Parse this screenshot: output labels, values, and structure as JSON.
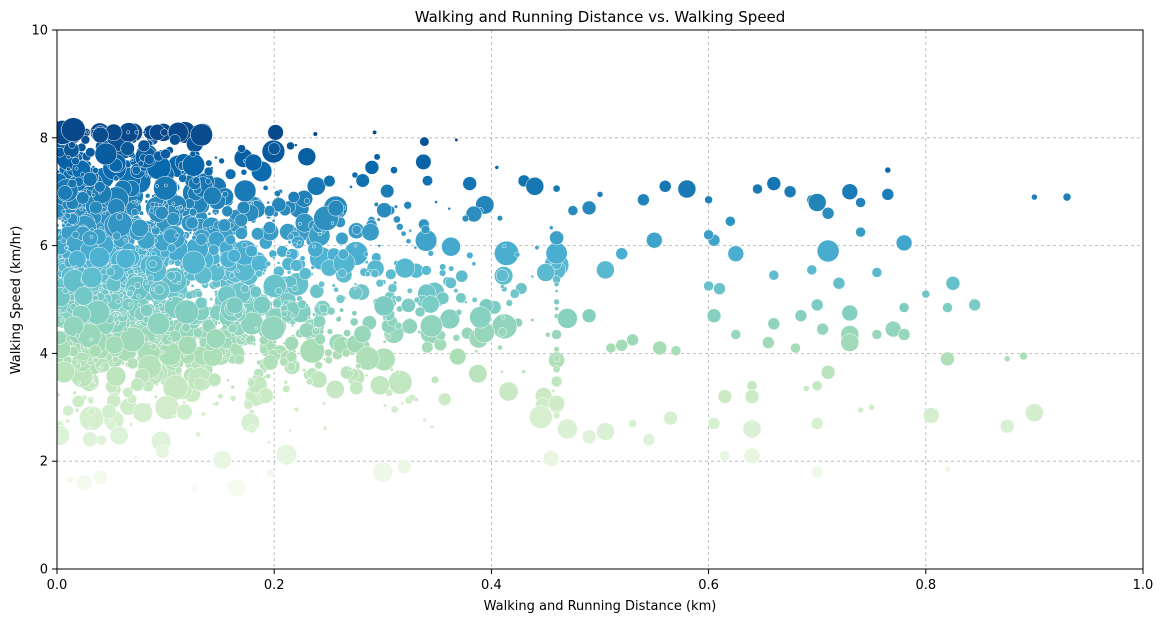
{
  "chart_data": {
    "type": "scatter",
    "title": "Walking and Running Distance vs. Walking Speed",
    "xlabel": "Walking and Running Distance (km)",
    "ylabel": "Walking Speed (km/hr)",
    "xlim": [
      0,
      1.0
    ],
    "ylim": [
      0,
      10
    ],
    "xticks": [
      "0.0",
      "0.2",
      "0.4",
      "0.6",
      "0.8",
      "1.0"
    ],
    "yticks": [
      "0",
      "2",
      "4",
      "6",
      "8",
      "10"
    ],
    "grid": true,
    "colormap": "GnBu (color by walking speed)",
    "color_stops": [
      "#f7fcf0",
      "#e0f3db",
      "#ccebc5",
      "#a8ddb5",
      "#7bccc4",
      "#4eb3d3",
      "#2b8cbe",
      "#0868ac",
      "#084081"
    ],
    "points": [
      {
        "x": 0.005,
        "y": 8.1,
        "s": 12
      },
      {
        "x": 0.015,
        "y": 8.15,
        "s": 12
      },
      {
        "x": 0.04,
        "y": 8.05,
        "s": 8
      },
      {
        "x": 0.045,
        "y": 7.7,
        "s": 11
      },
      {
        "x": 0.065,
        "y": 7.8,
        "s": 7
      },
      {
        "x": 0.08,
        "y": 7.85,
        "s": 6
      },
      {
        "x": 0.1,
        "y": 7.7,
        "s": 5
      },
      {
        "x": 0.085,
        "y": 7.6,
        "s": 5
      },
      {
        "x": 0.125,
        "y": 7.7,
        "s": 3
      },
      {
        "x": 0.17,
        "y": 7.8,
        "s": 4
      },
      {
        "x": 0.2,
        "y": 7.8,
        "s": 6
      },
      {
        "x": 0.215,
        "y": 7.85,
        "s": 4
      },
      {
        "x": 0.23,
        "y": 7.65,
        "s": 9
      },
      {
        "x": 0.29,
        "y": 7.45,
        "s": 7
      },
      {
        "x": 0.38,
        "y": 7.15,
        "s": 7
      },
      {
        "x": 0.405,
        "y": 7.45,
        "s": 2
      },
      {
        "x": 0.43,
        "y": 7.2,
        "s": 6
      },
      {
        "x": 0.44,
        "y": 7.1,
        "s": 9
      },
      {
        "x": 0.475,
        "y": 6.65,
        "s": 5
      },
      {
        "x": 0.49,
        "y": 6.7,
        "s": 7
      },
      {
        "x": 0.5,
        "y": 6.95,
        "s": 3
      },
      {
        "x": 0.54,
        "y": 6.85,
        "s": 6
      },
      {
        "x": 0.56,
        "y": 7.1,
        "s": 6
      },
      {
        "x": 0.58,
        "y": 7.05,
        "s": 9
      },
      {
        "x": 0.6,
        "y": 6.85,
        "s": 4
      },
      {
        "x": 0.645,
        "y": 7.05,
        "s": 5
      },
      {
        "x": 0.66,
        "y": 7.15,
        "s": 7
      },
      {
        "x": 0.675,
        "y": 7.0,
        "s": 6
      },
      {
        "x": 0.695,
        "y": 6.85,
        "s": 5
      },
      {
        "x": 0.7,
        "y": 6.8,
        "s": 9
      },
      {
        "x": 0.71,
        "y": 6.6,
        "s": 6
      },
      {
        "x": 0.73,
        "y": 7.0,
        "s": 8
      },
      {
        "x": 0.74,
        "y": 6.8,
        "s": 5
      },
      {
        "x": 0.765,
        "y": 6.95,
        "s": 6
      },
      {
        "x": 0.765,
        "y": 7.4,
        "s": 3
      },
      {
        "x": 0.9,
        "y": 6.9,
        "s": 3
      },
      {
        "x": 0.93,
        "y": 6.9,
        "s": 4
      },
      {
        "x": 0.71,
        "y": 5.9,
        "s": 11
      },
      {
        "x": 0.78,
        "y": 6.05,
        "s": 8
      },
      {
        "x": 0.74,
        "y": 6.25,
        "s": 5
      },
      {
        "x": 0.625,
        "y": 5.85,
        "s": 8
      },
      {
        "x": 0.605,
        "y": 6.1,
        "s": 6
      },
      {
        "x": 0.6,
        "y": 6.2,
        "s": 5
      },
      {
        "x": 0.62,
        "y": 6.45,
        "s": 5
      },
      {
        "x": 0.55,
        "y": 6.1,
        "s": 8
      },
      {
        "x": 0.52,
        "y": 5.85,
        "s": 6
      },
      {
        "x": 0.505,
        "y": 5.55,
        "s": 9
      },
      {
        "x": 0.45,
        "y": 5.5,
        "s": 9
      },
      {
        "x": 0.695,
        "y": 5.55,
        "s": 5
      },
      {
        "x": 0.72,
        "y": 5.3,
        "s": 6
      },
      {
        "x": 0.755,
        "y": 5.5,
        "s": 5
      },
      {
        "x": 0.66,
        "y": 5.45,
        "s": 5
      },
      {
        "x": 0.61,
        "y": 5.2,
        "s": 6
      },
      {
        "x": 0.6,
        "y": 5.25,
        "s": 5
      },
      {
        "x": 0.825,
        "y": 5.3,
        "s": 7
      },
      {
        "x": 0.845,
        "y": 4.9,
        "s": 6
      },
      {
        "x": 0.82,
        "y": 4.85,
        "s": 5
      },
      {
        "x": 0.78,
        "y": 4.85,
        "s": 5
      },
      {
        "x": 0.8,
        "y": 5.1,
        "s": 4
      },
      {
        "x": 0.73,
        "y": 4.75,
        "s": 8
      },
      {
        "x": 0.7,
        "y": 4.9,
        "s": 6
      },
      {
        "x": 0.685,
        "y": 4.7,
        "s": 6
      },
      {
        "x": 0.77,
        "y": 4.45,
        "s": 8
      },
      {
        "x": 0.73,
        "y": 4.35,
        "s": 9
      },
      {
        "x": 0.705,
        "y": 4.45,
        "s": 6
      },
      {
        "x": 0.68,
        "y": 4.1,
        "s": 5
      },
      {
        "x": 0.73,
        "y": 4.2,
        "s": 9
      },
      {
        "x": 0.755,
        "y": 4.35,
        "s": 5
      },
      {
        "x": 0.78,
        "y": 4.35,
        "s": 6
      },
      {
        "x": 0.605,
        "y": 4.7,
        "s": 7
      },
      {
        "x": 0.625,
        "y": 4.35,
        "s": 5
      },
      {
        "x": 0.66,
        "y": 4.55,
        "s": 6
      },
      {
        "x": 0.655,
        "y": 4.2,
        "s": 6
      },
      {
        "x": 0.57,
        "y": 4.05,
        "s": 5
      },
      {
        "x": 0.555,
        "y": 4.1,
        "s": 7
      },
      {
        "x": 0.49,
        "y": 4.7,
        "s": 7
      },
      {
        "x": 0.47,
        "y": 4.65,
        "s": 10
      },
      {
        "x": 0.46,
        "y": 4.35,
        "s": 5
      },
      {
        "x": 0.51,
        "y": 4.1,
        "s": 5
      },
      {
        "x": 0.52,
        "y": 4.15,
        "s": 6
      },
      {
        "x": 0.53,
        "y": 4.25,
        "s": 6
      },
      {
        "x": 0.82,
        "y": 3.9,
        "s": 7
      },
      {
        "x": 0.875,
        "y": 3.9,
        "s": 3
      },
      {
        "x": 0.89,
        "y": 3.95,
        "s": 4
      },
      {
        "x": 0.71,
        "y": 3.65,
        "s": 7
      },
      {
        "x": 0.7,
        "y": 3.4,
        "s": 5
      },
      {
        "x": 0.64,
        "y": 3.4,
        "s": 5
      },
      {
        "x": 0.615,
        "y": 3.2,
        "s": 7
      },
      {
        "x": 0.64,
        "y": 3.2,
        "s": 7
      },
      {
        "x": 0.69,
        "y": 3.35,
        "s": 3
      },
      {
        "x": 0.75,
        "y": 3.0,
        "s": 3
      },
      {
        "x": 0.74,
        "y": 2.95,
        "s": 3
      },
      {
        "x": 0.805,
        "y": 2.85,
        "s": 8
      },
      {
        "x": 0.9,
        "y": 2.9,
        "s": 9
      },
      {
        "x": 0.875,
        "y": 2.65,
        "s": 7
      },
      {
        "x": 0.7,
        "y": 2.7,
        "s": 6
      },
      {
        "x": 0.64,
        "y": 2.6,
        "s": 9
      },
      {
        "x": 0.605,
        "y": 2.7,
        "s": 6
      },
      {
        "x": 0.565,
        "y": 2.8,
        "s": 7
      },
      {
        "x": 0.53,
        "y": 2.7,
        "s": 4
      },
      {
        "x": 0.505,
        "y": 2.55,
        "s": 9
      },
      {
        "x": 0.49,
        "y": 2.45,
        "s": 7
      },
      {
        "x": 0.47,
        "y": 2.6,
        "s": 10
      },
      {
        "x": 0.545,
        "y": 2.4,
        "s": 6
      },
      {
        "x": 0.64,
        "y": 2.1,
        "s": 8
      },
      {
        "x": 0.615,
        "y": 2.1,
        "s": 5
      },
      {
        "x": 0.7,
        "y": 1.8,
        "s": 6
      },
      {
        "x": 0.82,
        "y": 1.85,
        "s": 3
      },
      {
        "x": 0.455,
        "y": 2.05,
        "s": 8
      },
      {
        "x": 0.3,
        "y": 1.8,
        "s": 10
      },
      {
        "x": 0.32,
        "y": 1.9,
        "s": 7
      },
      {
        "x": 0.04,
        "y": 1.7,
        "s": 7
      },
      {
        "x": 0.025,
        "y": 1.6,
        "s": 8
      }
    ]
  }
}
